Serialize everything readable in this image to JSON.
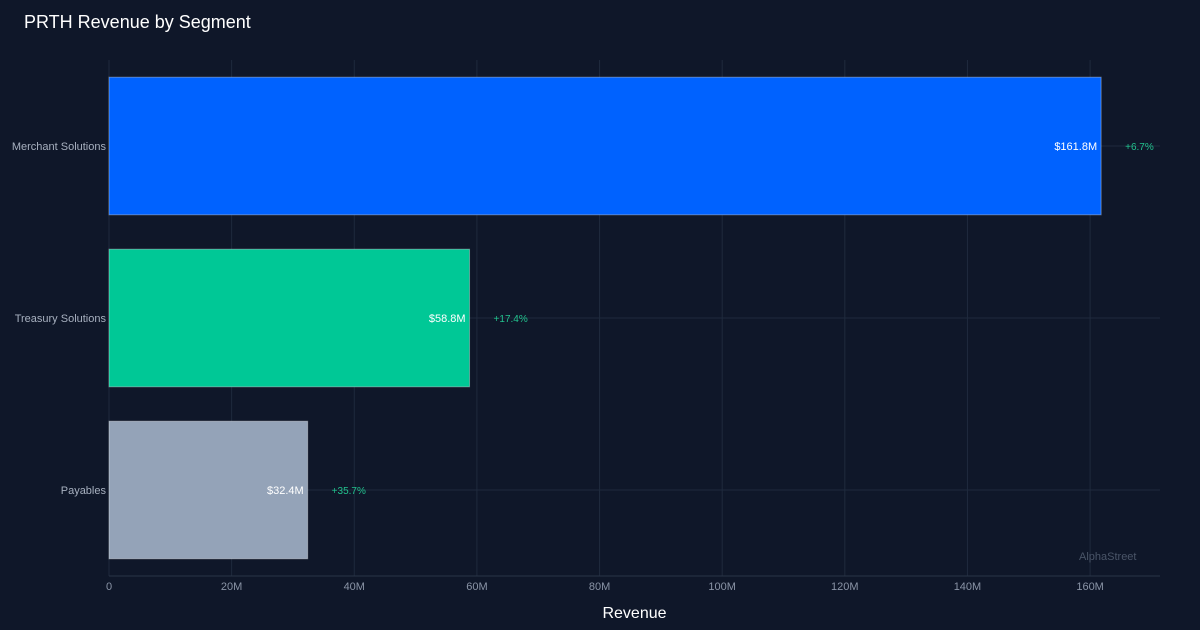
{
  "chart_data": {
    "type": "bar",
    "orientation": "horizontal",
    "title": "PRTH Revenue by Segment",
    "xlabel": "Revenue",
    "ylabel": "",
    "categories": [
      "Merchant Solutions",
      "Treasury Solutions",
      "Payables"
    ],
    "values": [
      161.8,
      58.8,
      32.4
    ],
    "value_labels": [
      "$161.8M",
      "$58.8M",
      "$32.4M"
    ],
    "growth_labels": [
      "+6.7%",
      "+17.4%",
      "+35.7%"
    ],
    "colors": [
      "#0062ff",
      "#00c896",
      "#94a3b8"
    ],
    "xlim": [
      0,
      171.4
    ],
    "x_ticks": [
      0,
      20,
      40,
      60,
      80,
      100,
      120,
      140,
      160
    ],
    "x_tick_labels": [
      "0",
      "20M",
      "40M",
      "60M",
      "80M",
      "100M",
      "120M",
      "140M",
      "160M"
    ],
    "grid": true,
    "growth_color": "#22c38e"
  },
  "watermark": "AlphaStreet"
}
